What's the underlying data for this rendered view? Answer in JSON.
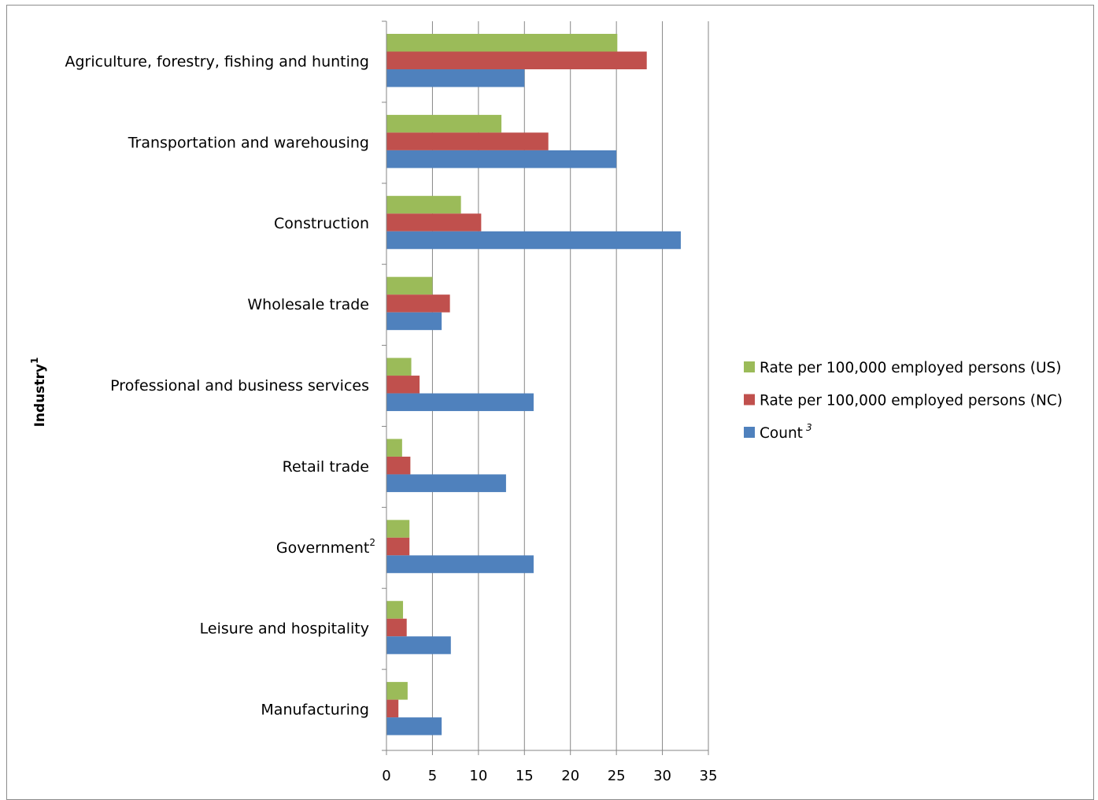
{
  "chart_data": {
    "type": "bar",
    "orientation": "horizontal",
    "categories": [
      "Agriculture, forestry, fishing and hunting",
      "Transportation and warehousing",
      "Construction",
      "Wholesale trade",
      "Professional and business services",
      "Retail trade",
      "Government",
      "Leisure and hospitality",
      "Manufacturing"
    ],
    "category_footnotes": [
      "",
      "",
      "",
      "",
      "",
      "",
      "2",
      "",
      ""
    ],
    "series": [
      {
        "name": "Rate per 100,000 employed persons (US)",
        "color": "#9BBB59",
        "values": [
          25.1,
          12.5,
          8.1,
          5.0,
          2.7,
          1.7,
          2.5,
          1.8,
          2.3
        ]
      },
      {
        "name": "Rate per 100,000 employed persons (NC)",
        "color": "#C0504D",
        "values": [
          28.3,
          17.6,
          10.3,
          6.9,
          3.6,
          2.6,
          2.5,
          2.2,
          1.3
        ]
      },
      {
        "name": "Count",
        "name_footnote": "3",
        "color": "#4F81BD",
        "values": [
          15,
          25,
          32,
          6,
          16,
          13,
          16,
          7,
          6
        ]
      }
    ],
    "xlim": [
      0,
      35
    ],
    "xticks": [
      "0",
      "5",
      "10",
      "15",
      "20",
      "25",
      "30",
      "35"
    ],
    "ylabel": "Industry",
    "ylabel_footnote": "1",
    "xlabel": "",
    "title": "",
    "grid": "vertical",
    "legend_position": "right"
  }
}
